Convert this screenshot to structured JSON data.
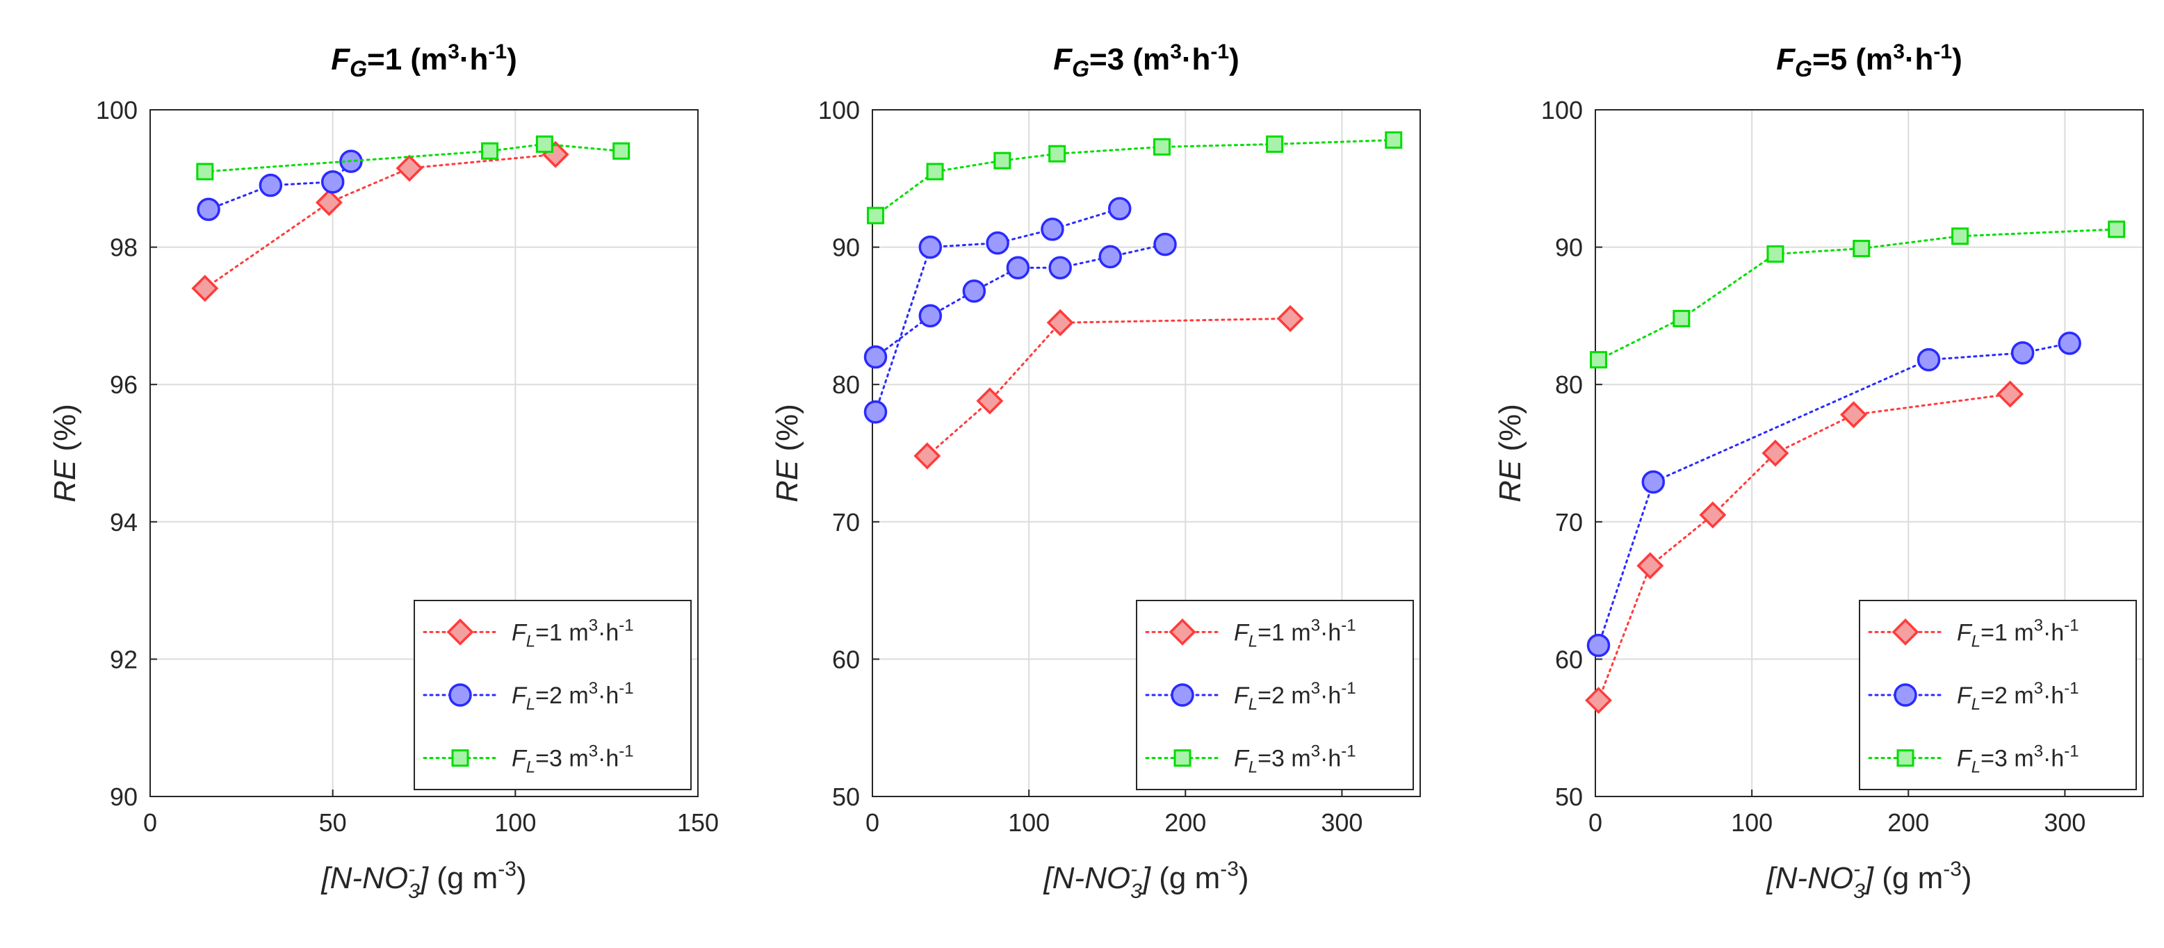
{
  "chart_data": [
    {
      "type": "line",
      "title": {
        "base": "F",
        "sub": "G",
        "mid": "=1 (m",
        "sup1": "3",
        "dot": "·h",
        "sup2": "-1",
        "end": ")"
      },
      "xlabel": {
        "main": "[N-NO",
        "sup": "-",
        "sub": "3",
        "close": "]",
        "unit": " (g m",
        "unit_sup": "-3",
        "unit_end": ")"
      },
      "ylabel": {
        "italic": "RE",
        "rest": " (%)"
      },
      "xlim": [
        0,
        150
      ],
      "ylim": [
        90,
        100
      ],
      "xticks": [
        0,
        50,
        100,
        150
      ],
      "yticks": [
        90,
        92,
        94,
        96,
        98,
        100
      ],
      "grid": true,
      "legend_position": "bottom-right",
      "series": [
        {
          "name": "F_L=1",
          "legend": {
            "base": "F",
            "sub": "L",
            "rest": "=1 m",
            "sup1": "3",
            "dot": "·h",
            "sup2": "-1"
          },
          "marker": "diamond",
          "color": "#ff3b3b",
          "fill": "#f4a0a0",
          "x": [
            15,
            49,
            71,
            111
          ],
          "y": [
            97.4,
            98.65,
            99.15,
            99.35
          ]
        },
        {
          "name": "F_L=2",
          "legend": {
            "base": "F",
            "sub": "L",
            "rest": "=2 m",
            "sup1": "3",
            "dot": "·h",
            "sup2": "-1"
          },
          "marker": "circle",
          "color": "#2a2aff",
          "fill": "#9b9bff",
          "x": [
            16,
            33,
            50,
            55
          ],
          "y": [
            98.55,
            98.9,
            98.95,
            99.25
          ]
        },
        {
          "name": "F_L=3",
          "legend": {
            "base": "F",
            "sub": "L",
            "rest": "=3 m",
            "sup1": "3",
            "dot": "·h",
            "sup2": "-1"
          },
          "marker": "square",
          "color": "#00dd00",
          "fill": "#a9f2a9",
          "x": [
            15,
            93,
            108,
            129
          ],
          "y": [
            99.1,
            99.4,
            99.5,
            99.4
          ]
        }
      ]
    },
    {
      "type": "line",
      "title": {
        "base": "F",
        "sub": "G",
        "mid": "=3 (m",
        "sup1": "3",
        "dot": "·h",
        "sup2": "-1",
        "end": ")"
      },
      "xlabel": {
        "main": "[N-NO",
        "sup": "-",
        "sub": "3",
        "close": "]",
        "unit": " (g m",
        "unit_sup": "-3",
        "unit_end": ")"
      },
      "ylabel": {
        "italic": "RE",
        "rest": " (%)"
      },
      "xlim": [
        0,
        350
      ],
      "ylim": [
        50,
        100
      ],
      "xticks": [
        0,
        100,
        200,
        300
      ],
      "yticks": [
        50,
        60,
        70,
        80,
        90,
        100
      ],
      "grid": true,
      "legend_position": "bottom-right",
      "series": [
        {
          "name": "F_L=1",
          "legend": {
            "base": "F",
            "sub": "L",
            "rest": "=1 m",
            "sup1": "3",
            "dot": "·h",
            "sup2": "-1"
          },
          "marker": "diamond",
          "color": "#ff3b3b",
          "fill": "#f4a0a0",
          "x": [
            35,
            75,
            120,
            267
          ],
          "y": [
            74.8,
            78.8,
            84.5,
            84.8
          ]
        },
        {
          "name": "F_L=2a",
          "legend": {
            "base": "F",
            "sub": "L",
            "rest": "=2 m",
            "sup1": "3",
            "dot": "·h",
            "sup2": "-1"
          },
          "marker": "circle",
          "color": "#2a2aff",
          "fill": "#9b9bff",
          "x": [
            2,
            37,
            80,
            115,
            158
          ],
          "y": [
            78,
            90,
            90.3,
            91.3,
            92.8
          ]
        },
        {
          "name": "F_L=2b",
          "marker": "circle",
          "color": "#2a2aff",
          "fill": "#9b9bff",
          "x": [
            2,
            37,
            65,
            93,
            120,
            152,
            187
          ],
          "y": [
            82,
            85,
            86.8,
            88.5,
            88.5,
            89.3,
            90.2
          ]
        },
        {
          "name": "F_L=3",
          "legend": {
            "base": "F",
            "sub": "L",
            "rest": "=3 m",
            "sup1": "3",
            "dot": "·h",
            "sup2": "-1"
          },
          "marker": "square",
          "color": "#00dd00",
          "fill": "#a9f2a9",
          "x": [
            2,
            40,
            83,
            118,
            185,
            257,
            333
          ],
          "y": [
            92.3,
            95.5,
            96.3,
            96.8,
            97.3,
            97.5,
            97.8
          ]
        }
      ]
    },
    {
      "type": "line",
      "title": {
        "base": "F",
        "sub": "G",
        "mid": "=5 (m",
        "sup1": "3",
        "dot": "·h",
        "sup2": "-1",
        "end": ")"
      },
      "xlabel": {
        "main": "[N-NO",
        "sup": "-",
        "sub": "3",
        "close": "]",
        "unit": " (g m",
        "unit_sup": "-3",
        "unit_end": ")"
      },
      "ylabel": {
        "italic": "RE",
        "rest": " (%)"
      },
      "xlim": [
        0,
        350
      ],
      "ylim": [
        50,
        100
      ],
      "xticks": [
        0,
        100,
        200,
        300
      ],
      "yticks": [
        50,
        60,
        70,
        80,
        90,
        100
      ],
      "grid": true,
      "legend_position": "bottom-right",
      "series": [
        {
          "name": "F_L=1",
          "legend": {
            "base": "F",
            "sub": "L",
            "rest": "=1 m",
            "sup1": "3",
            "dot": "·h",
            "sup2": "-1"
          },
          "marker": "diamond",
          "color": "#ff3b3b",
          "fill": "#f4a0a0",
          "x": [
            2,
            35,
            75,
            115,
            165,
            265
          ],
          "y": [
            57,
            66.8,
            70.5,
            75,
            77.8,
            79.3
          ]
        },
        {
          "name": "F_L=2",
          "legend": {
            "base": "F",
            "sub": "L",
            "rest": "=2 m",
            "sup1": "3",
            "dot": "·h",
            "sup2": "-1"
          },
          "marker": "circle",
          "color": "#2a2aff",
          "fill": "#9b9bff",
          "x": [
            2,
            37,
            213,
            273,
            303
          ],
          "y": [
            61,
            72.9,
            81.8,
            82.3,
            83
          ]
        },
        {
          "name": "F_L=3",
          "legend": {
            "base": "F",
            "sub": "L",
            "rest": "=3 m",
            "sup1": "3",
            "dot": "·h",
            "sup2": "-1"
          },
          "marker": "square",
          "color": "#00dd00",
          "fill": "#a9f2a9",
          "x": [
            2,
            55,
            115,
            170,
            233,
            333
          ],
          "y": [
            81.8,
            84.8,
            89.5,
            89.9,
            90.8,
            91.3
          ]
        }
      ]
    }
  ]
}
